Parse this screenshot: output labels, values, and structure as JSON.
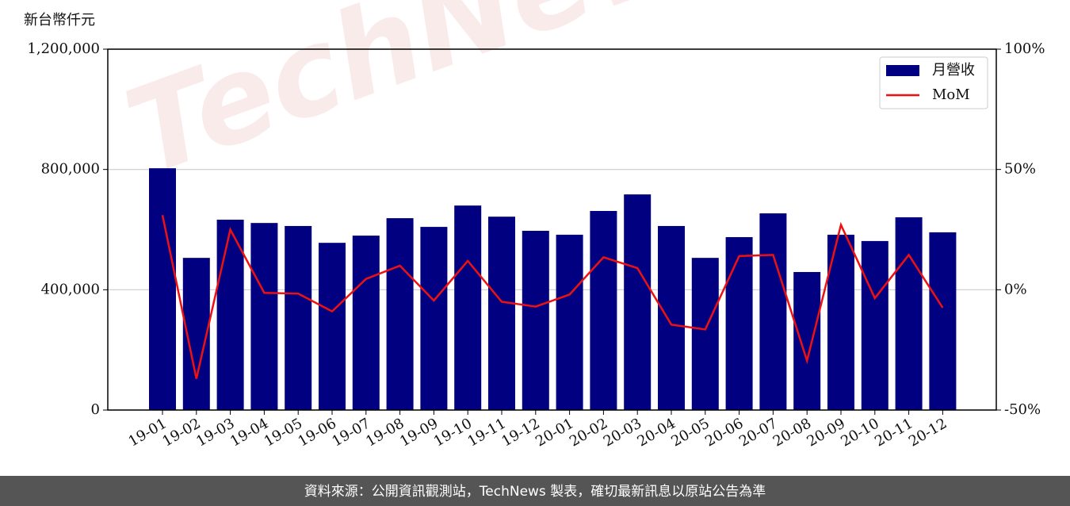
{
  "chart_data": {
    "type": "bar",
    "ylabel": "新台幣仟元",
    "watermark": "TechNews",
    "source": "資料來源：公開資訊觀測站，TechNews 製表，確切最新訊息以原站公告為準",
    "categories": [
      "19-01",
      "19-02",
      "19-03",
      "19-04",
      "19-05",
      "19-06",
      "19-07",
      "19-08",
      "19-09",
      "19-10",
      "19-11",
      "19-12",
      "20-01",
      "20-02",
      "20-03",
      "20-04",
      "20-05",
      "20-06",
      "20-07",
      "20-08",
      "20-09",
      "20-10",
      "20-11",
      "20-12"
    ],
    "series": [
      {
        "name": "月營收",
        "type": "bar",
        "color": "#000080",
        "values": [
          804000,
          506000,
          633000,
          622000,
          612000,
          556000,
          580000,
          638000,
          609000,
          680000,
          643000,
          596000,
          583000,
          662000,
          717000,
          612000,
          506000,
          575000,
          654000,
          459000,
          583000,
          562000,
          641000,
          591000
        ]
      },
      {
        "name": "MoM",
        "type": "line",
        "color": "#ee1111",
        "axis": "y2",
        "values": [
          31,
          -37,
          25,
          -1.3,
          -1.6,
          -9,
          4.5,
          10,
          -4.5,
          12,
          -5,
          -7,
          -2,
          13.5,
          9,
          -14.5,
          -16.5,
          14,
          14.5,
          -29.5,
          27,
          -3.5,
          14.5,
          -7.5
        ]
      }
    ],
    "ylim": [
      0,
      1200000
    ],
    "yticks": [
      0,
      {
        "value": 400000,
        "label": "400,000"
      },
      {
        "value": 800000,
        "label": "800,000"
      },
      {
        "value": 1200000,
        "label": "1,200,000"
      }
    ],
    "y2lim": [
      -50,
      100
    ],
    "y2ticks": [
      {
        "value": -50,
        "label": "-50%"
      },
      {
        "value": 0,
        "label": "0%"
      },
      {
        "value": 50,
        "label": "50%"
      },
      {
        "value": 100,
        "label": "100%"
      }
    ],
    "grid": true,
    "legend": "upper right"
  }
}
